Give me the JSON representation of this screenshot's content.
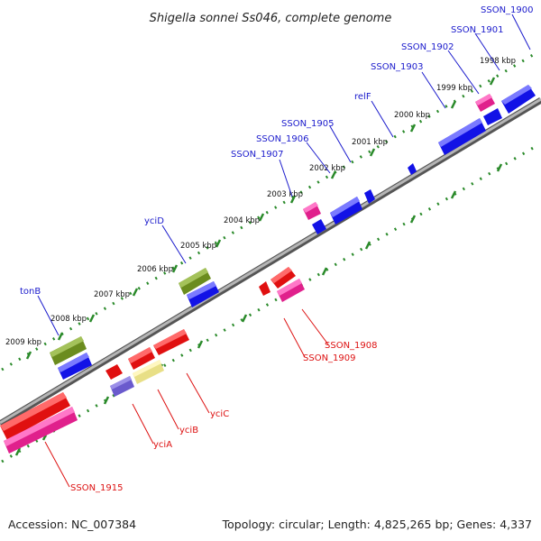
{
  "title": "Shigella sonnei Ss046, complete genome",
  "footer": {
    "accession": "Accession: NC_007384",
    "summary": "Topology: circular; Length: 4,825,265 bp; Genes: 4,337"
  },
  "colors": {
    "forward_label": "#1a1acc",
    "reverse_label": "#dd1111",
    "backbone": "#7f7f7f",
    "tick": "#2a8a2a"
  },
  "kbp_labels": [
    "1998 kbp",
    "1999 kbp",
    "2000 kbp",
    "2001 kbp",
    "2002 kbp",
    "2003 kbp",
    "2004 kbp",
    "2005 kbp",
    "2006 kbp",
    "2007 kbp",
    "2008 kbp",
    "2009 kbp"
  ],
  "forward_labels": [
    "SSON_1900",
    "SSON_1901",
    "SSON_1902",
    "SSON_1903",
    "relF",
    "SSON_1905",
    "SSON_1906",
    "SSON_1907",
    "yciD",
    "tonB"
  ],
  "reverse_labels": [
    "SSON_1908",
    "SSON_1909",
    "yciC",
    "yciB",
    "yciA",
    "SSON_1915"
  ]
}
